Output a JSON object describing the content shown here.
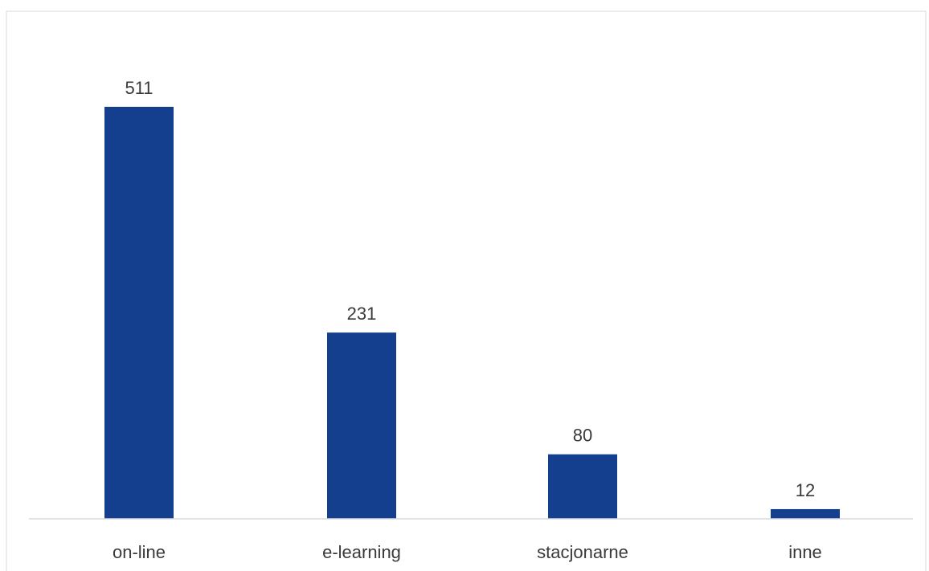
{
  "chart_data": {
    "type": "bar",
    "categories": [
      "on-line",
      "e-learning",
      "stacjonarne",
      "inne"
    ],
    "values": [
      511,
      231,
      80,
      12
    ],
    "data_labels": [
      "511",
      "231",
      "80",
      "12"
    ],
    "title": "",
    "xlabel": "",
    "ylabel": "",
    "ylim": [
      0,
      600
    ],
    "grid": false,
    "legend": "none",
    "colors": {
      "bar": "#143F8F",
      "axis": "#d9d9d9",
      "border": "#d9d9d9",
      "text": "#3a3a3a"
    }
  }
}
